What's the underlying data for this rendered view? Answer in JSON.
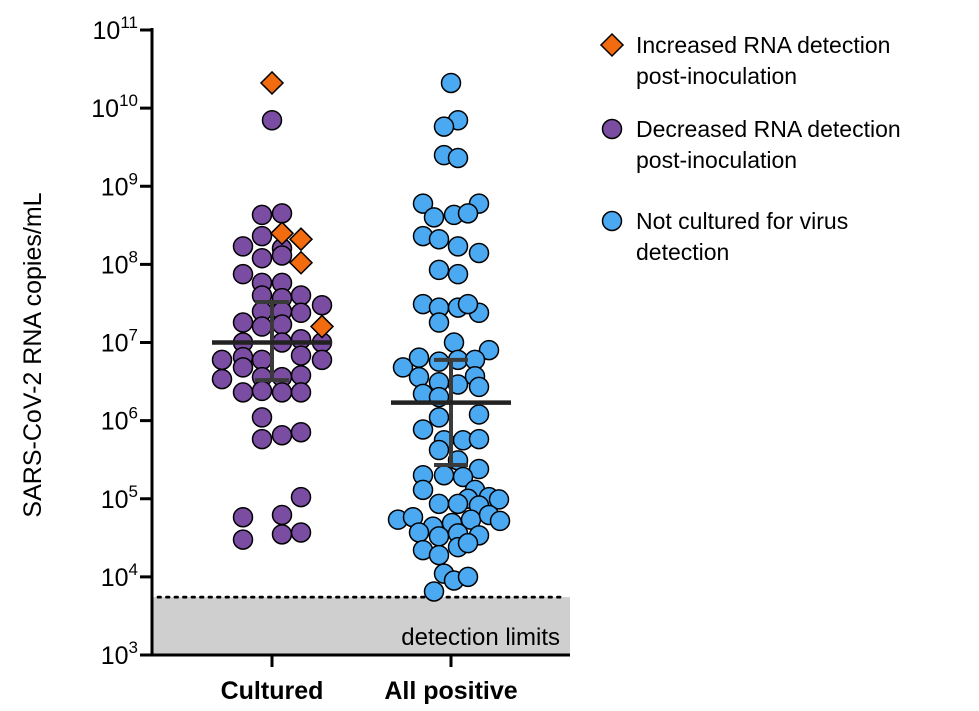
{
  "chart_data": {
    "type": "scatter",
    "ylabel": "SARS-CoV-2 RNA copies/mL",
    "yscale": "log10",
    "ylim": [
      1000,
      100000000000
    ],
    "yticks": [
      {
        "value": 1000,
        "base": "10",
        "exp": "3"
      },
      {
        "value": 10000,
        "base": "10",
        "exp": "4"
      },
      {
        "value": 100000,
        "base": "10",
        "exp": "5"
      },
      {
        "value": 1000000,
        "base": "10",
        "exp": "6"
      },
      {
        "value": 10000000,
        "base": "10",
        "exp": "7"
      },
      {
        "value": 100000000,
        "base": "10",
        "exp": "8"
      },
      {
        "value": 1000000000,
        "base": "10",
        "exp": "9"
      },
      {
        "value": 10000000000,
        "base": "10",
        "exp": "10"
      },
      {
        "value": 100000000000,
        "base": "10",
        "exp": "11"
      }
    ],
    "categories": [
      "Cultured",
      "All positive"
    ],
    "detection_limit": {
      "value": 5500,
      "label": "detection limits"
    },
    "legend": [
      {
        "label_lines": [
          "Increased RNA detection",
          "post-inoculation"
        ],
        "marker": "diamond",
        "color": "#F26B0F"
      },
      {
        "label_lines": [
          "Decreased RNA detection",
          "post-inoculation"
        ],
        "marker": "circle",
        "color": "#7A4CA2"
      },
      {
        "label_lines": [
          "Not cultured for virus",
          "detection"
        ],
        "marker": "circle",
        "color": "#4BA9F2"
      }
    ],
    "series": [
      {
        "category": "Cultured",
        "marker": "diamond",
        "color": "#F26B0F",
        "points": [
          {
            "dx": 0,
            "y": 21000000000
          },
          {
            "dx": 10,
            "y": 250000000
          },
          {
            "dx": 29,
            "y": 210000000
          },
          {
            "dx": 29,
            "y": 105000000
          },
          {
            "dx": 50,
            "y": 16000000
          }
        ]
      },
      {
        "category": "Cultured",
        "marker": "circle",
        "color": "#7A4CA2",
        "points": [
          {
            "dx": 0,
            "y": 7000000000
          },
          {
            "dx": -10,
            "y": 430000000
          },
          {
            "dx": 10,
            "y": 450000000
          },
          {
            "dx": -29,
            "y": 170000000
          },
          {
            "dx": -10,
            "y": 230000000
          },
          {
            "dx": 10,
            "y": 160000000
          },
          {
            "dx": -10,
            "y": 120000000
          },
          {
            "dx": 10,
            "y": 130000000
          },
          {
            "dx": -29,
            "y": 75000000
          },
          {
            "dx": -10,
            "y": 58000000
          },
          {
            "dx": 10,
            "y": 58000000
          },
          {
            "dx": -10,
            "y": 40000000
          },
          {
            "dx": 10,
            "y": 37000000
          },
          {
            "dx": 29,
            "y": 40000000
          },
          {
            "dx": 50,
            "y": 30000000
          },
          {
            "dx": -10,
            "y": 25000000
          },
          {
            "dx": 10,
            "y": 25000000
          },
          {
            "dx": 29,
            "y": 24000000
          },
          {
            "dx": -29,
            "y": 18000000
          },
          {
            "dx": -10,
            "y": 16000000
          },
          {
            "dx": 10,
            "y": 17000000
          },
          {
            "dx": -29,
            "y": 10000000
          },
          {
            "dx": 10,
            "y": 10000000
          },
          {
            "dx": 29,
            "y": 11000000
          },
          {
            "dx": 50,
            "y": 10000000
          },
          {
            "dx": -50,
            "y": 6000000
          },
          {
            "dx": -29,
            "y": 6500000
          },
          {
            "dx": -10,
            "y": 6000000
          },
          {
            "dx": 29,
            "y": 6800000
          },
          {
            "dx": -50,
            "y": 3400000
          },
          {
            "dx": -29,
            "y": 4800000
          },
          {
            "dx": -10,
            "y": 3600000
          },
          {
            "dx": 10,
            "y": 3600000
          },
          {
            "dx": 29,
            "y": 3800000
          },
          {
            "dx": 50,
            "y": 6000000
          },
          {
            "dx": -29,
            "y": 2300000
          },
          {
            "dx": -10,
            "y": 2400000
          },
          {
            "dx": 10,
            "y": 2300000
          },
          {
            "dx": 29,
            "y": 2300000
          },
          {
            "dx": -10,
            "y": 1100000
          },
          {
            "dx": -10,
            "y": 580000
          },
          {
            "dx": 10,
            "y": 650000
          },
          {
            "dx": 29,
            "y": 710000
          },
          {
            "dx": 29,
            "y": 105000
          },
          {
            "dx": -29,
            "y": 58000
          },
          {
            "dx": 10,
            "y": 62000
          },
          {
            "dx": 10,
            "y": 35000
          },
          {
            "dx": 29,
            "y": 37000
          },
          {
            "dx": -29,
            "y": 30000
          }
        ]
      },
      {
        "category": "All positive",
        "marker": "circle",
        "color": "#4BA9F2",
        "points": [
          {
            "dx": 0,
            "y": 21000000000
          },
          {
            "dx": 7,
            "y": 7000000000
          },
          {
            "dx": -7,
            "y": 5800000000
          },
          {
            "dx": -7,
            "y": 2500000000
          },
          {
            "dx": 7,
            "y": 2300000000
          },
          {
            "dx": -28,
            "y": 600000000
          },
          {
            "dx": 28,
            "y": 600000000
          },
          {
            "dx": -17,
            "y": 400000000
          },
          {
            "dx": 3,
            "y": 430000000
          },
          {
            "dx": 17,
            "y": 450000000
          },
          {
            "dx": -28,
            "y": 230000000
          },
          {
            "dx": -12,
            "y": 210000000
          },
          {
            "dx": 7,
            "y": 170000000
          },
          {
            "dx": 28,
            "y": 140000000
          },
          {
            "dx": -12,
            "y": 85000000
          },
          {
            "dx": 7,
            "y": 75000000
          },
          {
            "dx": -28,
            "y": 31000000
          },
          {
            "dx": -12,
            "y": 28000000
          },
          {
            "dx": 7,
            "y": 28000000
          },
          {
            "dx": 28,
            "y": 24000000
          },
          {
            "dx": 17,
            "y": 31000000
          },
          {
            "dx": -12,
            "y": 18000000
          },
          {
            "dx": 3,
            "y": 10000000
          },
          {
            "dx": 38,
            "y": 8000000
          },
          {
            "dx": -48,
            "y": 4800000
          },
          {
            "dx": -32,
            "y": 6400000
          },
          {
            "dx": -12,
            "y": 5700000
          },
          {
            "dx": 7,
            "y": 6000000
          },
          {
            "dx": 24,
            "y": 6000000
          },
          {
            "dx": -32,
            "y": 3600000
          },
          {
            "dx": -12,
            "y": 3100000
          },
          {
            "dx": 7,
            "y": 2900000
          },
          {
            "dx": 24,
            "y": 3700000
          },
          {
            "dx": -28,
            "y": 2200000
          },
          {
            "dx": -12,
            "y": 2000000
          },
          {
            "dx": 28,
            "y": 2700000
          },
          {
            "dx": -12,
            "y": 1100000
          },
          {
            "dx": 28,
            "y": 1200000
          },
          {
            "dx": -28,
            "y": 770000
          },
          {
            "dx": -7,
            "y": 560000
          },
          {
            "dx": 12,
            "y": 560000
          },
          {
            "dx": 28,
            "y": 580000
          },
          {
            "dx": -12,
            "y": 420000
          },
          {
            "dx": 7,
            "y": 310000
          },
          {
            "dx": 28,
            "y": 240000
          },
          {
            "dx": -28,
            "y": 200000
          },
          {
            "dx": -7,
            "y": 200000
          },
          {
            "dx": 12,
            "y": 190000
          },
          {
            "dx": -28,
            "y": 130000
          },
          {
            "dx": 24,
            "y": 130000
          },
          {
            "dx": 38,
            "y": 105000
          },
          {
            "dx": 17,
            "y": 100000
          },
          {
            "dx": 48,
            "y": 98000
          },
          {
            "dx": -12,
            "y": 86000
          },
          {
            "dx": 7,
            "y": 86000
          },
          {
            "dx": 28,
            "y": 82000
          },
          {
            "dx": -53,
            "y": 54000
          },
          {
            "dx": -38,
            "y": 58000
          },
          {
            "dx": -18,
            "y": 44000
          },
          {
            "dx": 1,
            "y": 49000
          },
          {
            "dx": 20,
            "y": 54000
          },
          {
            "dx": 38,
            "y": 62000
          },
          {
            "dx": 49,
            "y": 52000
          },
          {
            "dx": -32,
            "y": 37000
          },
          {
            "dx": -12,
            "y": 33000
          },
          {
            "dx": 7,
            "y": 36000
          },
          {
            "dx": 28,
            "y": 34000
          },
          {
            "dx": -28,
            "y": 22000
          },
          {
            "dx": -12,
            "y": 19000
          },
          {
            "dx": 7,
            "y": 24000
          },
          {
            "dx": 17,
            "y": 27000
          },
          {
            "dx": -7,
            "y": 11000
          },
          {
            "dx": 3,
            "y": 9000
          },
          {
            "dx": 17,
            "y": 10000
          },
          {
            "dx": -17,
            "y": 6500
          }
        ]
      }
    ],
    "summary": [
      {
        "category": "Cultured",
        "median": 10000000,
        "q1": 3300000,
        "q3": 33000000
      },
      {
        "category": "All positive",
        "median": 1700000,
        "q1": 270000,
        "q3": 6000000
      }
    ]
  }
}
